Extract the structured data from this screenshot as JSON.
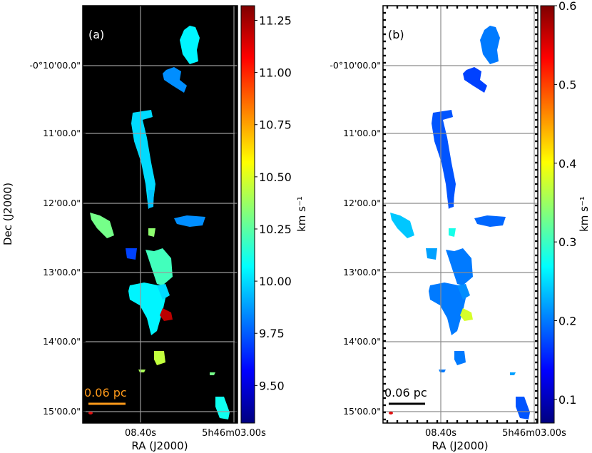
{
  "colors": {
    "panel_a_bg": "#000000",
    "panel_b_bg": "#ffffff",
    "grid_a": "#9a9a9a",
    "grid_b": "#8c8c8c",
    "scalebar_a": "#ff9a1a",
    "scalebar_b": "#000000",
    "beam": "#e01010",
    "colormap": [
      "#00007f",
      "#0000ff",
      "#007fff",
      "#00ffff",
      "#7fff7f",
      "#ffff00",
      "#ff7f00",
      "#ff0000",
      "#7f0000"
    ]
  },
  "chart_data": [
    {
      "type": "heatmap",
      "panel_label": "(a)",
      "xlabel": "RA (J2000)",
      "ylabel": "Dec (J2000)",
      "x_tick_labels": [
        "08.40s",
        "5h46m03.00s"
      ],
      "y_tick_labels": [
        "-0°10'00.0\"",
        "11'00.0\"",
        "12'00.0\"",
        "13'00.0\"",
        "14'00.0\"",
        "15'00.0\""
      ],
      "grid": true,
      "colorbar": {
        "label": "km s⁻¹",
        "range": [
          9.32,
          11.32
        ],
        "ticks": [
          "9.50",
          "9.75",
          "10.00",
          "10.25",
          "10.50",
          "10.75",
          "11.00",
          "11.25"
        ],
        "tick_values": [
          9.5,
          9.75,
          10.0,
          10.25,
          10.5,
          10.75,
          11.0,
          11.25
        ]
      },
      "scale_bar": "0.06 pc",
      "beam_marker": true,
      "structures": [
        {
          "value": 10.05
        },
        {
          "value": 9.85
        },
        {
          "value": 10.0
        },
        {
          "value": 9.95
        },
        {
          "value": 10.3
        },
        {
          "value": 9.85
        },
        {
          "value": 10.35
        },
        {
          "value": 10.2
        },
        {
          "value": 10.05
        },
        {
          "value": 10.0
        },
        {
          "value": 9.7
        },
        {
          "value": 11.2
        },
        {
          "value": 10.45
        },
        {
          "value": 10.1
        },
        {
          "value": 10.4
        },
        {
          "value": 10.3
        }
      ]
    },
    {
      "type": "heatmap",
      "panel_label": "(b)",
      "xlabel": "RA (J2000)",
      "ylabel": "",
      "x_tick_labels": [
        "08.40s",
        "5h46m03.00s"
      ],
      "y_tick_labels": [
        "-0°10'00.0\"",
        "11'00.0\"",
        "12'00.0\"",
        "13'00.0\"",
        "14'00.0\"",
        "15'00.0\""
      ],
      "grid": true,
      "colorbar": {
        "label": "km s⁻¹",
        "range": [
          0.07,
          0.6
        ],
        "ticks": [
          "0.1",
          "0.2",
          "0.3",
          "0.4",
          "0.5",
          "0.6"
        ],
        "tick_values": [
          0.1,
          0.2,
          0.3,
          0.4,
          0.5,
          0.6
        ]
      },
      "scale_bar": "0.06 pc",
      "beam_marker": true,
      "structures": [
        {
          "value": 0.2
        },
        {
          "value": 0.17
        },
        {
          "value": 0.18
        },
        {
          "value": 0.18
        },
        {
          "value": 0.24
        },
        {
          "value": 0.19
        },
        {
          "value": 0.28
        },
        {
          "value": 0.2
        },
        {
          "value": 0.2
        },
        {
          "value": 0.21
        },
        {
          "value": 0.22
        },
        {
          "value": 0.38
        },
        {
          "value": 0.2
        },
        {
          "value": 0.18
        },
        {
          "value": 0.2
        },
        {
          "value": 0.22
        }
      ]
    }
  ]
}
